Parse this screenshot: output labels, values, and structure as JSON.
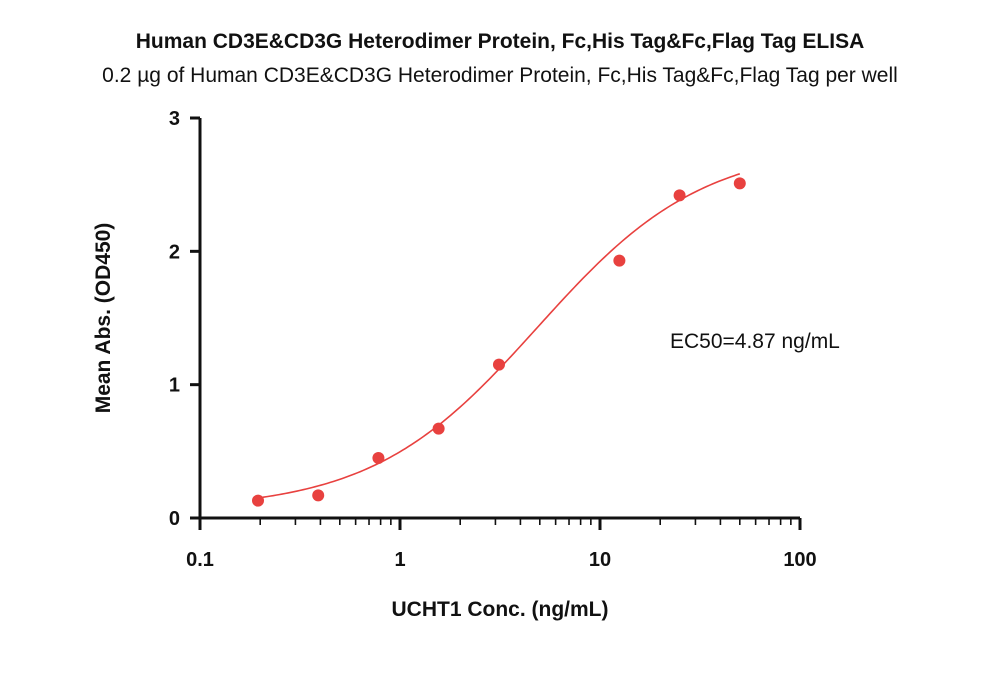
{
  "chart_data": {
    "type": "scatter",
    "title": "Human CD3E&CD3G Heterodimer Protein, Fc,His Tag&Fc,Flag Tag ELISA",
    "subtitle": "0.2 µg of Human CD3E&CD3G Heterodimer Protein, Fc,His Tag&Fc,Flag Tag per well",
    "xlabel": "UCHT1 Conc. (ng/mL)",
    "ylabel": "Mean Abs. (OD450)",
    "xscale": "log",
    "xlim": [
      0.1,
      100
    ],
    "ylim": [
      0,
      3
    ],
    "xticks": [
      0.1,
      1,
      10,
      100
    ],
    "xtick_labels": [
      "0.1",
      "1",
      "10",
      "100"
    ],
    "yticks": [
      0,
      1,
      2,
      3
    ],
    "ytick_labels": [
      "0",
      "1",
      "2",
      "3"
    ],
    "grid": false,
    "series": [
      {
        "color": "#e8413f",
        "x": [
          0.195,
          0.39,
          0.78,
          1.56,
          3.125,
          12.5,
          25,
          50
        ],
        "y": [
          0.13,
          0.17,
          0.45,
          0.67,
          1.15,
          1.93,
          2.42,
          2.51
        ]
      }
    ],
    "fit": {
      "model": "4PL",
      "color": "#e8413f",
      "bottom": 0.06,
      "top": 2.8,
      "ec50": 4.87,
      "hill": 1.05,
      "x_range": [
        0.195,
        50
      ]
    },
    "annotations": [
      "EC50=4.87 ng/mL"
    ]
  }
}
